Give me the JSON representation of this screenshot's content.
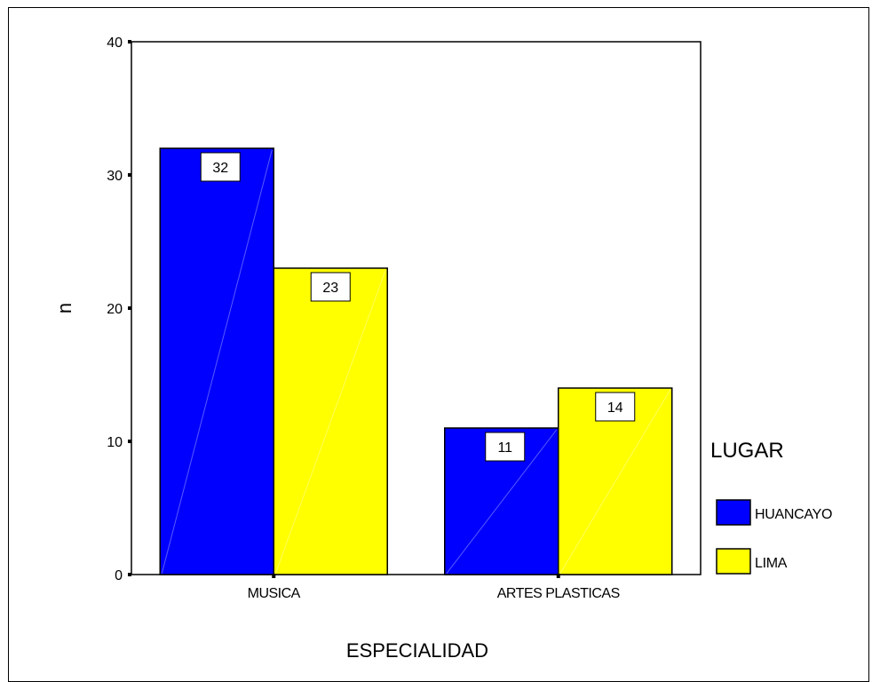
{
  "chart_data": {
    "type": "bar",
    "categories": [
      "MUSICA",
      "ARTES PLASTICAS"
    ],
    "series": [
      {
        "name": "HUANCAYO",
        "values": [
          32,
          11
        ],
        "color": "#0000ff"
      },
      {
        "name": "LIMA",
        "values": [
          23,
          14
        ],
        "color": "#ffff00"
      }
    ],
    "data_labels": [
      [
        "32",
        "11"
      ],
      [
        "23",
        "14"
      ]
    ],
    "xlabel": "ESPECIALIDAD",
    "ylabel": "n",
    "ylim": [
      0,
      40
    ],
    "yticks": [
      0,
      10,
      20,
      30,
      40
    ],
    "legend_title": "LUGAR",
    "legend_placement": "right",
    "grid": false
  }
}
